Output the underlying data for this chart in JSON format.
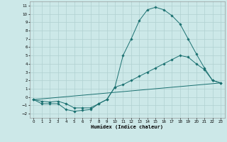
{
  "xlabel": "Humidex (Indice chaleur)",
  "xlim": [
    -0.5,
    23.5
  ],
  "ylim": [
    -2.5,
    11.5
  ],
  "xticks": [
    0,
    1,
    2,
    3,
    4,
    5,
    6,
    7,
    8,
    9,
    10,
    11,
    12,
    13,
    14,
    15,
    16,
    17,
    18,
    19,
    20,
    21,
    22,
    23
  ],
  "yticks": [
    -2,
    -1,
    0,
    1,
    2,
    3,
    4,
    5,
    6,
    7,
    8,
    9,
    10,
    11
  ],
  "bg_color": "#cce8e8",
  "line_color": "#1a7070",
  "grid_color": "#b0d0d0",
  "line1_x": [
    0,
    1,
    2,
    3,
    4,
    5,
    6,
    7,
    8,
    9,
    10,
    11,
    12,
    13,
    14,
    15,
    16,
    17,
    18,
    19,
    20,
    21,
    22,
    23
  ],
  "line1_y": [
    -0.3,
    -0.8,
    -0.8,
    -0.8,
    -1.5,
    -1.7,
    -1.6,
    -1.5,
    -0.8,
    -0.3,
    1.2,
    5.0,
    7.0,
    9.2,
    10.5,
    10.8,
    10.5,
    9.8,
    8.8,
    7.0,
    5.2,
    3.5,
    2.0,
    1.7
  ],
  "line2_x": [
    0,
    1,
    2,
    3,
    4,
    5,
    6,
    7,
    8,
    9,
    10,
    11,
    12,
    13,
    14,
    15,
    16,
    17,
    18,
    19,
    20,
    21,
    22,
    23
  ],
  "line2_y": [
    -0.3,
    -0.5,
    -0.6,
    -0.5,
    -0.8,
    -1.3,
    -1.3,
    -1.3,
    -0.8,
    -0.3,
    1.2,
    1.5,
    2.0,
    2.5,
    3.0,
    3.5,
    4.0,
    4.5,
    5.0,
    4.8,
    4.0,
    3.3,
    2.0,
    1.7
  ],
  "line3_x": [
    0,
    23
  ],
  "line3_y": [
    -0.3,
    1.7
  ]
}
